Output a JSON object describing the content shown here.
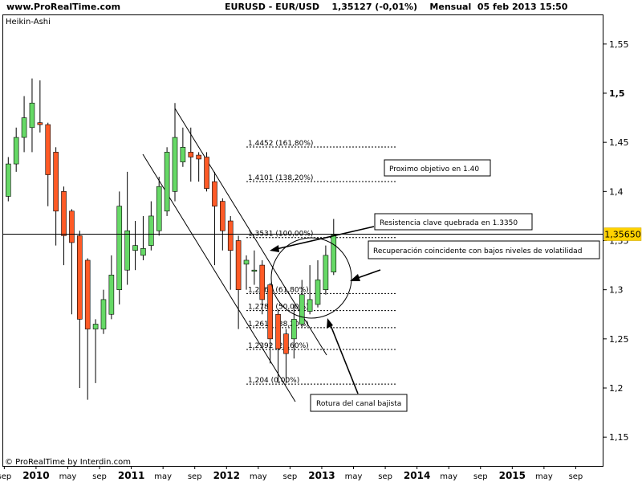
{
  "header": {
    "site": "www.ProRealTime.com",
    "symbol": "EURUSD - EUR/USD",
    "quote": "1,35127 (-0,01%)",
    "timeframe_date": "Mensual  05 feb 2013 15:50"
  },
  "footer": {
    "credit": "© ProRealTime by Interdin.com"
  },
  "chart_data": {
    "type": "candlestick",
    "chart_label": "Heikin-Ashi",
    "ylim": [
      1.12,
      1.59
    ],
    "grid": false,
    "y_ticks": [
      {
        "value": 1.15,
        "label": "1,15"
      },
      {
        "value": 1.2,
        "label": "1,2"
      },
      {
        "value": 1.25,
        "label": "1,25"
      },
      {
        "value": 1.3,
        "label": "1,3"
      },
      {
        "value": 1.35,
        "label": "1,35"
      },
      {
        "value": 1.4,
        "label": "1,4"
      },
      {
        "value": 1.45,
        "label": "1,45"
      },
      {
        "value": 1.5,
        "label": "1,5"
      },
      {
        "value": 1.55,
        "label": "1,55"
      }
    ],
    "x_ticks": [
      {
        "i": -0.5,
        "label": "sep",
        "bold": false
      },
      {
        "i": 3.5,
        "label": "2010",
        "bold": true
      },
      {
        "i": 7.5,
        "label": "may",
        "bold": false
      },
      {
        "i": 11.5,
        "label": "sep",
        "bold": false
      },
      {
        "i": 15.5,
        "label": "2011",
        "bold": true
      },
      {
        "i": 19.5,
        "label": "may",
        "bold": false
      },
      {
        "i": 23.5,
        "label": "sep",
        "bold": false
      },
      {
        "i": 27.5,
        "label": "2012",
        "bold": true
      },
      {
        "i": 31.5,
        "label": "may",
        "bold": false
      },
      {
        "i": 35.5,
        "label": "sep",
        "bold": false
      },
      {
        "i": 39.5,
        "label": "2013",
        "bold": true
      },
      {
        "i": 43.5,
        "label": "may",
        "bold": false
      },
      {
        "i": 47.5,
        "label": "sep",
        "bold": false
      },
      {
        "i": 51.5,
        "label": "2014",
        "bold": true
      },
      {
        "i": 55.5,
        "label": "may",
        "bold": false
      },
      {
        "i": 59.5,
        "label": "sep",
        "bold": false
      },
      {
        "i": 63.5,
        "label": "2015",
        "bold": true
      },
      {
        "i": 67.5,
        "label": "may",
        "bold": false
      },
      {
        "i": 71.5,
        "label": "sep",
        "bold": false
      }
    ],
    "candles": [
      {
        "i": 0,
        "o": 1.395,
        "h": 1.435,
        "l": 1.39,
        "c": 1.428
      },
      {
        "i": 1,
        "o": 1.428,
        "h": 1.465,
        "l": 1.42,
        "c": 1.455
      },
      {
        "i": 2,
        "o": 1.455,
        "h": 1.497,
        "l": 1.44,
        "c": 1.475
      },
      {
        "i": 3,
        "o": 1.465,
        "h": 1.515,
        "l": 1.44,
        "c": 1.49
      },
      {
        "i": 4,
        "o": 1.47,
        "h": 1.513,
        "l": 1.46,
        "c": 1.468
      },
      {
        "i": 5,
        "o": 1.468,
        "h": 1.47,
        "l": 1.385,
        "c": 1.417
      },
      {
        "i": 6,
        "o": 1.44,
        "h": 1.445,
        "l": 1.345,
        "c": 1.38
      },
      {
        "i": 7,
        "o": 1.4,
        "h": 1.405,
        "l": 1.325,
        "c": 1.355
      },
      {
        "i": 8,
        "o": 1.38,
        "h": 1.382,
        "l": 1.275,
        "c": 1.348
      },
      {
        "i": 9,
        "o": 1.355,
        "h": 1.36,
        "l": 1.2,
        "c": 1.27
      },
      {
        "i": 10,
        "o": 1.33,
        "h": 1.332,
        "l": 1.188,
        "c": 1.26
      },
      {
        "i": 11,
        "o": 1.26,
        "h": 1.27,
        "l": 1.205,
        "c": 1.265
      },
      {
        "i": 12,
        "o": 1.26,
        "h": 1.3,
        "l": 1.255,
        "c": 1.29
      },
      {
        "i": 13,
        "o": 1.275,
        "h": 1.335,
        "l": 1.27,
        "c": 1.315
      },
      {
        "i": 14,
        "o": 1.3,
        "h": 1.4,
        "l": 1.285,
        "c": 1.385
      },
      {
        "i": 15,
        "o": 1.32,
        "h": 1.42,
        "l": 1.305,
        "c": 1.36
      },
      {
        "i": 16,
        "o": 1.34,
        "h": 1.37,
        "l": 1.32,
        "c": 1.345
      },
      {
        "i": 17,
        "o": 1.335,
        "h": 1.375,
        "l": 1.33,
        "c": 1.342
      },
      {
        "i": 18,
        "o": 1.345,
        "h": 1.39,
        "l": 1.34,
        "c": 1.375
      },
      {
        "i": 19,
        "o": 1.36,
        "h": 1.415,
        "l": 1.355,
        "c": 1.405
      },
      {
        "i": 20,
        "o": 1.38,
        "h": 1.445,
        "l": 1.375,
        "c": 1.44
      },
      {
        "i": 21,
        "o": 1.4,
        "h": 1.49,
        "l": 1.39,
        "c": 1.455
      },
      {
        "i": 22,
        "o": 1.43,
        "h": 1.465,
        "l": 1.425,
        "c": 1.445
      },
      {
        "i": 23,
        "o": 1.44,
        "h": 1.465,
        "l": 1.41,
        "c": 1.435
      },
      {
        "i": 24,
        "o": 1.437,
        "h": 1.44,
        "l": 1.41,
        "c": 1.433
      },
      {
        "i": 25,
        "o": 1.435,
        "h": 1.44,
        "l": 1.4,
        "c": 1.403
      },
      {
        "i": 26,
        "o": 1.41,
        "h": 1.42,
        "l": 1.325,
        "c": 1.385
      },
      {
        "i": 27,
        "o": 1.39,
        "h": 1.393,
        "l": 1.34,
        "c": 1.36
      },
      {
        "i": 28,
        "o": 1.37,
        "h": 1.375,
        "l": 1.3,
        "c": 1.34
      },
      {
        "i": 29,
        "o": 1.35,
        "h": 1.355,
        "l": 1.26,
        "c": 1.3
      },
      {
        "i": 30,
        "o": 1.326,
        "h": 1.335,
        "l": 1.3,
        "c": 1.33
      },
      {
        "i": 31,
        "o": 1.32,
        "h": 1.34,
        "l": 1.305,
        "c": 1.32
      },
      {
        "i": 32,
        "o": 1.325,
        "h": 1.33,
        "l": 1.275,
        "c": 1.29
      },
      {
        "i": 33,
        "o": 1.305,
        "h": 1.307,
        "l": 1.225,
        "c": 1.25
      },
      {
        "i": 34,
        "o": 1.275,
        "h": 1.28,
        "l": 1.205,
        "c": 1.24
      },
      {
        "i": 35,
        "o": 1.255,
        "h": 1.26,
        "l": 1.205,
        "c": 1.235
      },
      {
        "i": 36,
        "o": 1.25,
        "h": 1.285,
        "l": 1.23,
        "c": 1.27
      },
      {
        "i": 37,
        "o": 1.265,
        "h": 1.31,
        "l": 1.262,
        "c": 1.295
      },
      {
        "i": 38,
        "o": 1.278,
        "h": 1.325,
        "l": 1.275,
        "c": 1.29
      },
      {
        "i": 39,
        "o": 1.285,
        "h": 1.33,
        "l": 1.282,
        "c": 1.31
      },
      {
        "i": 40,
        "o": 1.3,
        "h": 1.345,
        "l": 1.295,
        "c": 1.335
      },
      {
        "i": 41,
        "o": 1.318,
        "h": 1.372,
        "l": 1.315,
        "c": 1.356
      }
    ],
    "fibonacci_levels": [
      {
        "value": 1.4452,
        "label": "1,4452 (161,80%)"
      },
      {
        "value": 1.4101,
        "label": "1,4101 (138,20%)"
      },
      {
        "value": 1.3531,
        "label": "1,3531 (100,00%)"
      },
      {
        "value": 1.2962,
        "label": "1,2962 (61,80%)"
      },
      {
        "value": 1.2788,
        "label": "1,2788 (50,00%)"
      },
      {
        "value": 1.2614,
        "label": "1,2614 (38,20%)"
      },
      {
        "value": 1.2392,
        "label": "1,2392 (23,60%)"
      },
      {
        "value": 1.204,
        "label": "1,204 (0,00%)"
      }
    ],
    "horizontal_line": {
      "value": 1.3565
    },
    "current_price": {
      "value": 1.3565,
      "label": "1,35650"
    },
    "annotations": [
      {
        "name": "target",
        "text": "Proximo objetivo en 1.40"
      },
      {
        "name": "resistance",
        "text": "Resistencia clave quebrada en 1.3350"
      },
      {
        "name": "recovery",
        "text": "Recuperación coincidente con bajos niveles de volatilidad"
      },
      {
        "name": "channel-break",
        "text": "Rotura del canal bajista"
      }
    ],
    "colors": {
      "up": "#66d966",
      "down": "#ff5a26",
      "line": "#000000",
      "price_tag": "#ffd200"
    }
  }
}
